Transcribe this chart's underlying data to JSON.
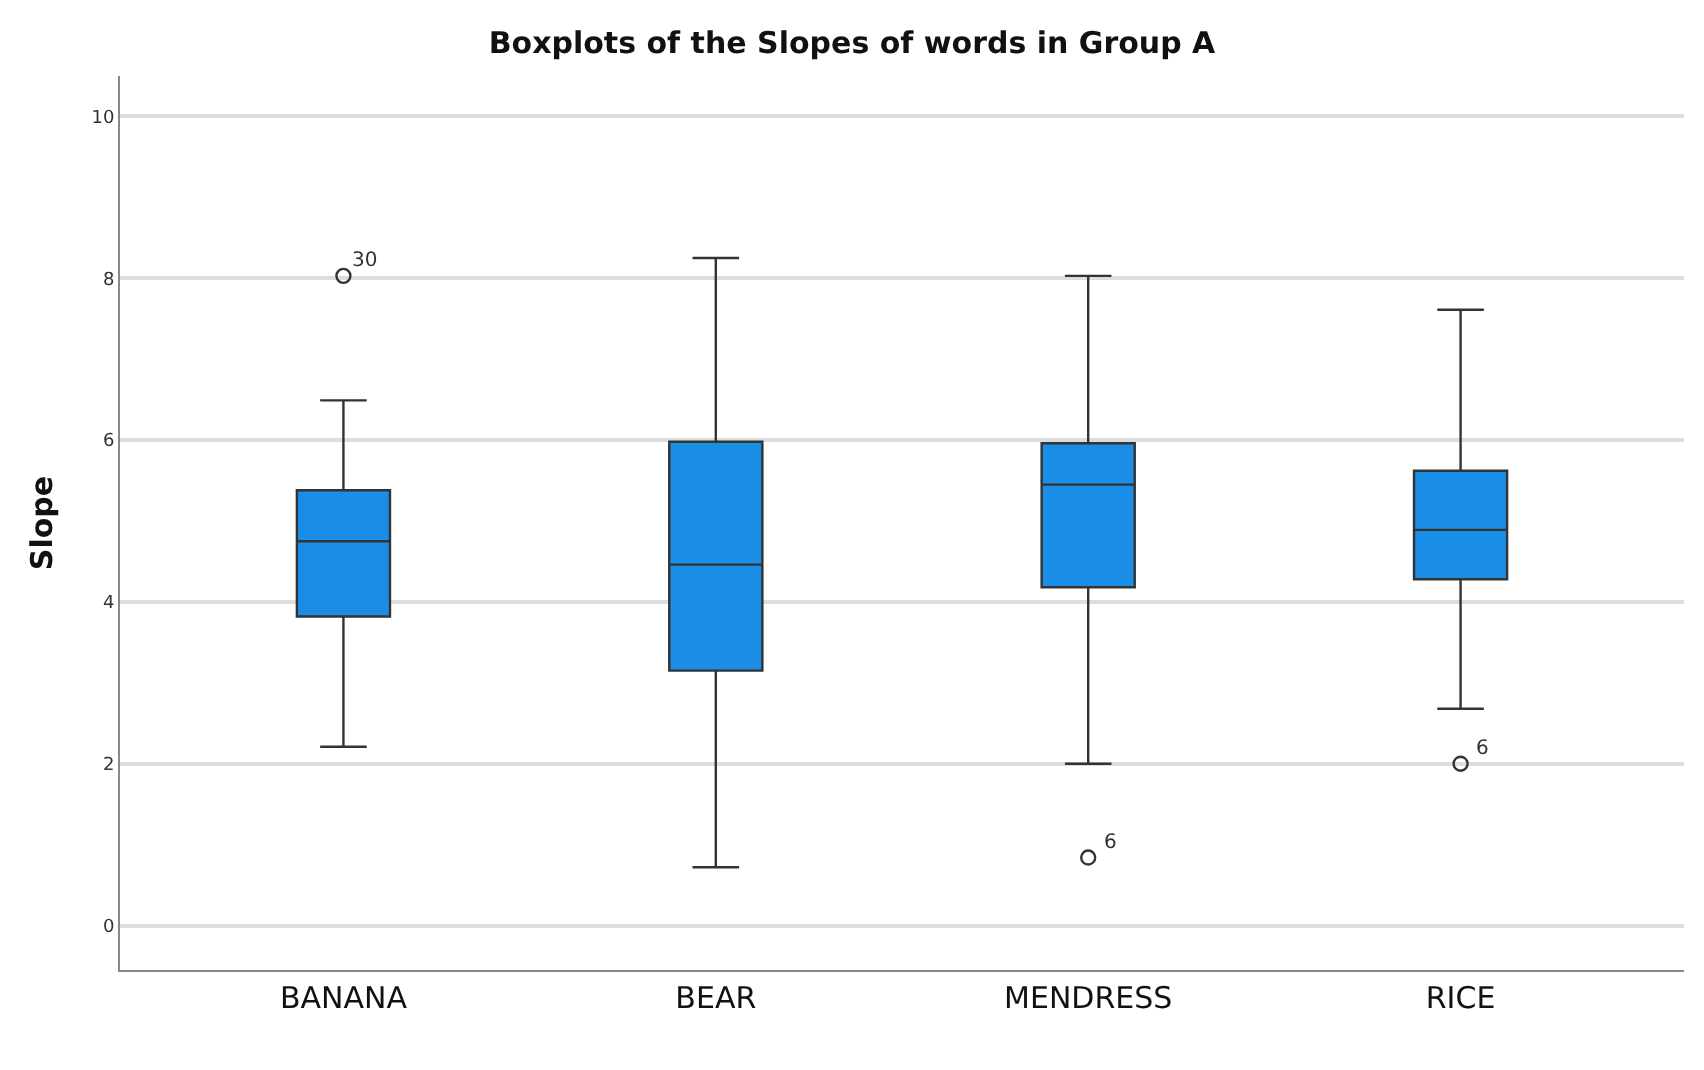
{
  "chart_data": {
    "type": "box",
    "title": "Boxplots of the Slopes of words in Group A",
    "ylabel": "Slope",
    "categories": [
      "BANANA",
      "BEAR",
      "MENDRESS",
      "RICE"
    ],
    "color": "#1a8de6",
    "boxes": [
      {
        "low": 2.21,
        "q1": 3.82,
        "median": 4.75,
        "q3": 5.38,
        "high": 6.49,
        "outliers": [
          8.03
        ]
      },
      {
        "low": 0.72,
        "q1": 3.15,
        "median": 4.46,
        "q3": 5.98,
        "high": 8.25
      },
      {
        "low": 2.0,
        "q1": 4.18,
        "median": 5.45,
        "q3": 5.96,
        "high": 8.03,
        "outliers": [
          0.84
        ]
      },
      {
        "low": 2.68,
        "q1": 4.28,
        "median": 4.89,
        "q3": 5.62,
        "high": 7.61,
        "outliers": [
          2.0
        ]
      }
    ],
    "annotations": [
      "30",
      "6",
      "6"
    ],
    "ylim": [
      -0.55,
      10.5
    ],
    "yticks": [
      0,
      2,
      4,
      6,
      8,
      10
    ],
    "grid": "y"
  }
}
